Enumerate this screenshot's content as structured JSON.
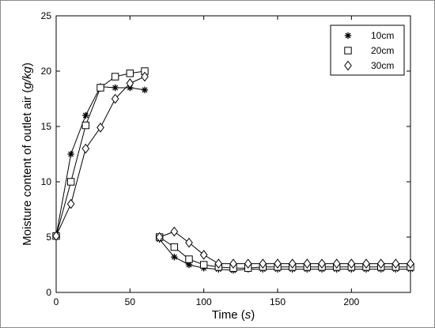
{
  "chart_data": {
    "type": "line",
    "title": "",
    "xlabel": {
      "text": "Time",
      "unit": "s"
    },
    "ylabel": {
      "text": "Moisture content of outlet air",
      "unit": "g/kg"
    },
    "xlim": [
      0,
      240
    ],
    "ylim": [
      0,
      25
    ],
    "xticks": [
      0,
      50,
      100,
      150,
      200
    ],
    "yticks": [
      0,
      5,
      10,
      15,
      20,
      25
    ],
    "grid": false,
    "legend_position": "top-right",
    "series": [
      {
        "name": "10cm",
        "marker": "asterisk",
        "segments": [
          {
            "x": [
              0,
              10,
              20,
              30,
              40,
              50,
              60
            ],
            "y": [
              5.1,
              12.5,
              16.0,
              18.6,
              18.5,
              18.5,
              18.3
            ]
          },
          {
            "x": [
              70,
              80,
              90,
              100,
              110,
              120,
              130,
              140,
              150,
              160,
              170,
              180,
              190,
              200,
              210,
              220,
              230,
              240
            ],
            "y": [
              4.8,
              3.2,
              2.5,
              2.2,
              2.1,
              2.0,
              2.1,
              2.1,
              2.1,
              2.1,
              2.1,
              2.1,
              2.1,
              2.1,
              2.1,
              2.1,
              2.1,
              2.1
            ]
          }
        ]
      },
      {
        "name": "20cm",
        "marker": "square",
        "segments": [
          {
            "x": [
              0,
              10,
              20,
              30,
              40,
              50,
              60
            ],
            "y": [
              5.1,
              10.0,
              15.1,
              18.5,
              19.5,
              19.8,
              20.0
            ]
          },
          {
            "x": [
              70,
              80,
              90,
              100,
              110,
              120,
              130,
              140,
              150,
              160,
              170,
              180,
              190,
              200,
              210,
              220,
              230,
              240
            ],
            "y": [
              5.0,
              4.1,
              3.0,
              2.5,
              2.3,
              2.2,
              2.2,
              2.3,
              2.3,
              2.3,
              2.3,
              2.3,
              2.3,
              2.3,
              2.3,
              2.3,
              2.3,
              2.3
            ]
          }
        ]
      },
      {
        "name": "30cm",
        "marker": "diamond",
        "segments": [
          {
            "x": [
              0,
              10,
              20,
              30,
              40,
              50,
              60
            ],
            "y": [
              5.1,
              8.0,
              13.0,
              14.9,
              17.5,
              18.9,
              19.5
            ]
          },
          {
            "x": [
              70,
              80,
              90,
              100,
              110,
              120,
              130,
              140,
              150,
              160,
              170,
              180,
              190,
              200,
              210,
              220,
              230,
              240
            ],
            "y": [
              5.0,
              5.5,
              4.5,
              3.4,
              2.6,
              2.6,
              2.6,
              2.6,
              2.6,
              2.6,
              2.6,
              2.6,
              2.6,
              2.6,
              2.6,
              2.6,
              2.6,
              2.6
            ]
          }
        ]
      }
    ]
  }
}
